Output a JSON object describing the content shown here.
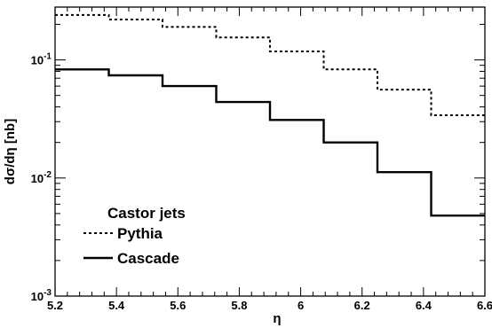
{
  "chart_data": {
    "type": "line",
    "style": "step-histogram",
    "xlabel": "η",
    "ylabel": "dσ/dη [nb]",
    "xlim": [
      5.2,
      6.6
    ],
    "ylim": [
      0.001,
      0.28
    ],
    "yscale": "log",
    "grid": false,
    "x_ticks": [
      {
        "value": 5.2,
        "label": "5.2"
      },
      {
        "value": 5.4,
        "label": "5.4"
      },
      {
        "value": 5.6,
        "label": "5.6"
      },
      {
        "value": 5.8,
        "label": "5.8"
      },
      {
        "value": 6.0,
        "label": "6"
      },
      {
        "value": 6.2,
        "label": "6.2"
      },
      {
        "value": 6.4,
        "label": "6.4"
      },
      {
        "value": 6.6,
        "label": "6.6"
      }
    ],
    "y_ticks": [
      {
        "value": 0.001,
        "base": "10",
        "exp": "-3"
      },
      {
        "value": 0.01,
        "base": "10",
        "exp": "-2"
      },
      {
        "value": 0.1,
        "base": "10",
        "exp": "-1"
      }
    ],
    "bin_edges": [
      5.2,
      5.375,
      5.55,
      5.725,
      5.9,
      6.075,
      6.25,
      6.425,
      6.6
    ],
    "legend": {
      "title": "Castor jets",
      "placement": "bottom-left"
    },
    "series": [
      {
        "name": "Pythia",
        "line_style": "dotted",
        "color": "#000000",
        "values": [
          0.24,
          0.22,
          0.19,
          0.155,
          0.118,
          0.083,
          0.056,
          0.034
        ]
      },
      {
        "name": "Cascade",
        "line_style": "solid",
        "color": "#000000",
        "values": [
          0.083,
          0.074,
          0.06,
          0.044,
          0.031,
          0.02,
          0.0112,
          0.0048
        ]
      }
    ]
  }
}
